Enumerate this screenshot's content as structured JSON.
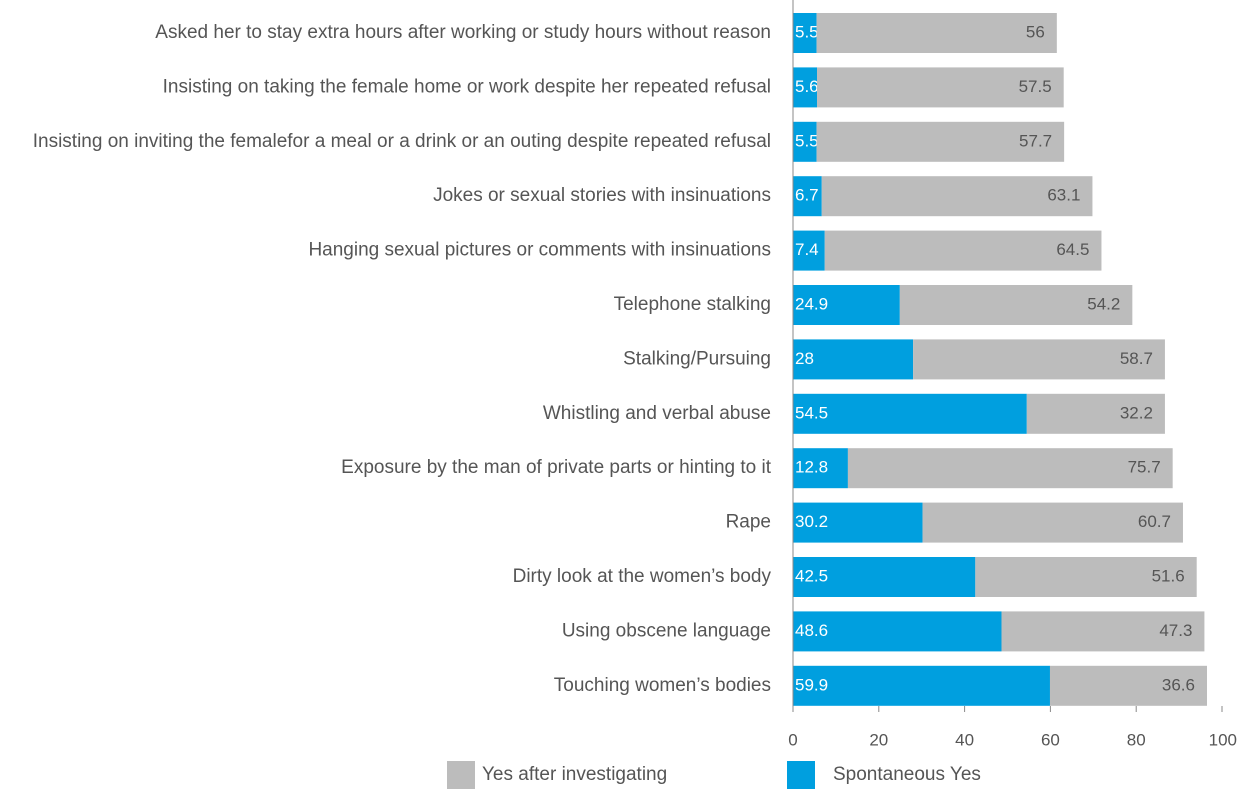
{
  "chart_data": {
    "type": "stacked_barh",
    "categories": [
      "Asked her to stay extra hours after working or study hours without reason",
      "Insisting on taking the female home or work despite her repeated refusal",
      "Insisting on inviting the femalefor a meal or a drink or an outing despite repeated refusal",
      "Jokes or sexual stories with insinuations",
      "Hanging sexual pictures or comments with insinuations",
      "Telephone stalking",
      "Stalking/Pursuing",
      "Whistling and verbal abuse",
      "Exposure by the man of private parts or hinting to it",
      "Rape",
      "Dirty look at the women’s body",
      "Using obscene language",
      "Touching women’s bodies"
    ],
    "series": [
      {
        "name": "Spontaneous Yes",
        "color": "#009fdf",
        "values": [
          5.5,
          5.6,
          5.5,
          6.7,
          7.4,
          24.9,
          28,
          54.5,
          12.8,
          30.2,
          42.5,
          48.6,
          59.9
        ]
      },
      {
        "name": "Yes after investigating",
        "color": "#bcbcbc",
        "values": [
          56,
          57.5,
          57.7,
          63.1,
          64.5,
          54.2,
          58.7,
          32.2,
          75.7,
          60.7,
          51.6,
          47.3,
          36.6
        ]
      }
    ],
    "xlim": [
      0,
      100
    ],
    "xticks": [
      0,
      20,
      40,
      60,
      80,
      100
    ]
  }
}
